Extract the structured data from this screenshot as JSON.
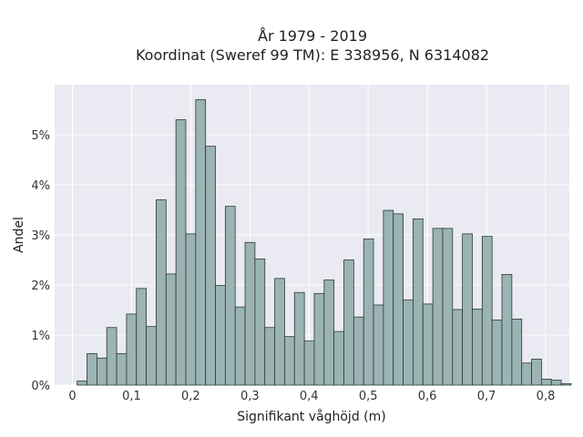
{
  "chart_data": {
    "type": "bar",
    "title_lines": [
      "År 1979 - 2019",
      "Koordinat (Sweref 99 TM): E 338956, N 6314082"
    ],
    "xlabel": "Signifikant våghöjd (m)",
    "ylabel": "Andel",
    "xlim": [
      -0.03,
      0.84
    ],
    "ylim": [
      0,
      6.0
    ],
    "x_ticks": [
      0,
      0.1,
      0.2,
      0.3,
      0.4,
      0.5,
      0.6,
      0.7,
      0.8
    ],
    "x_tick_labels": [
      "0",
      "0,1",
      "0,2",
      "0,3",
      "0,4",
      "0,5",
      "0,6",
      "0,7",
      "0,8"
    ],
    "y_ticks": [
      0,
      1,
      2,
      3,
      4,
      5
    ],
    "y_tick_labels": [
      "0%",
      "1%",
      "2%",
      "3%",
      "4%",
      "5%"
    ],
    "bin_width": 0.0167,
    "bin_start": 0.008,
    "values": [
      0.08,
      0.63,
      0.54,
      1.15,
      0.63,
      1.42,
      1.93,
      1.17,
      3.7,
      2.22,
      5.3,
      3.02,
      5.7,
      4.77,
      1.99,
      3.57,
      1.56,
      2.85,
      2.52,
      1.15,
      2.13,
      0.97,
      1.85,
      0.88,
      1.83,
      2.1,
      1.07,
      2.5,
      1.36,
      2.92,
      1.6,
      3.49,
      3.42,
      1.7,
      3.32,
      1.62,
      3.13,
      3.13,
      1.51,
      3.02,
      1.52,
      2.97,
      1.3,
      2.21,
      1.32,
      0.44,
      0.52,
      0.12,
      0.1,
      0.03
    ],
    "grid": true,
    "colors": {
      "plot_bg": "#eaeaf2",
      "grid": "#ffffff",
      "bar_fill": "#9bb3b3",
      "bar_edge": "#2b3a3a"
    }
  }
}
